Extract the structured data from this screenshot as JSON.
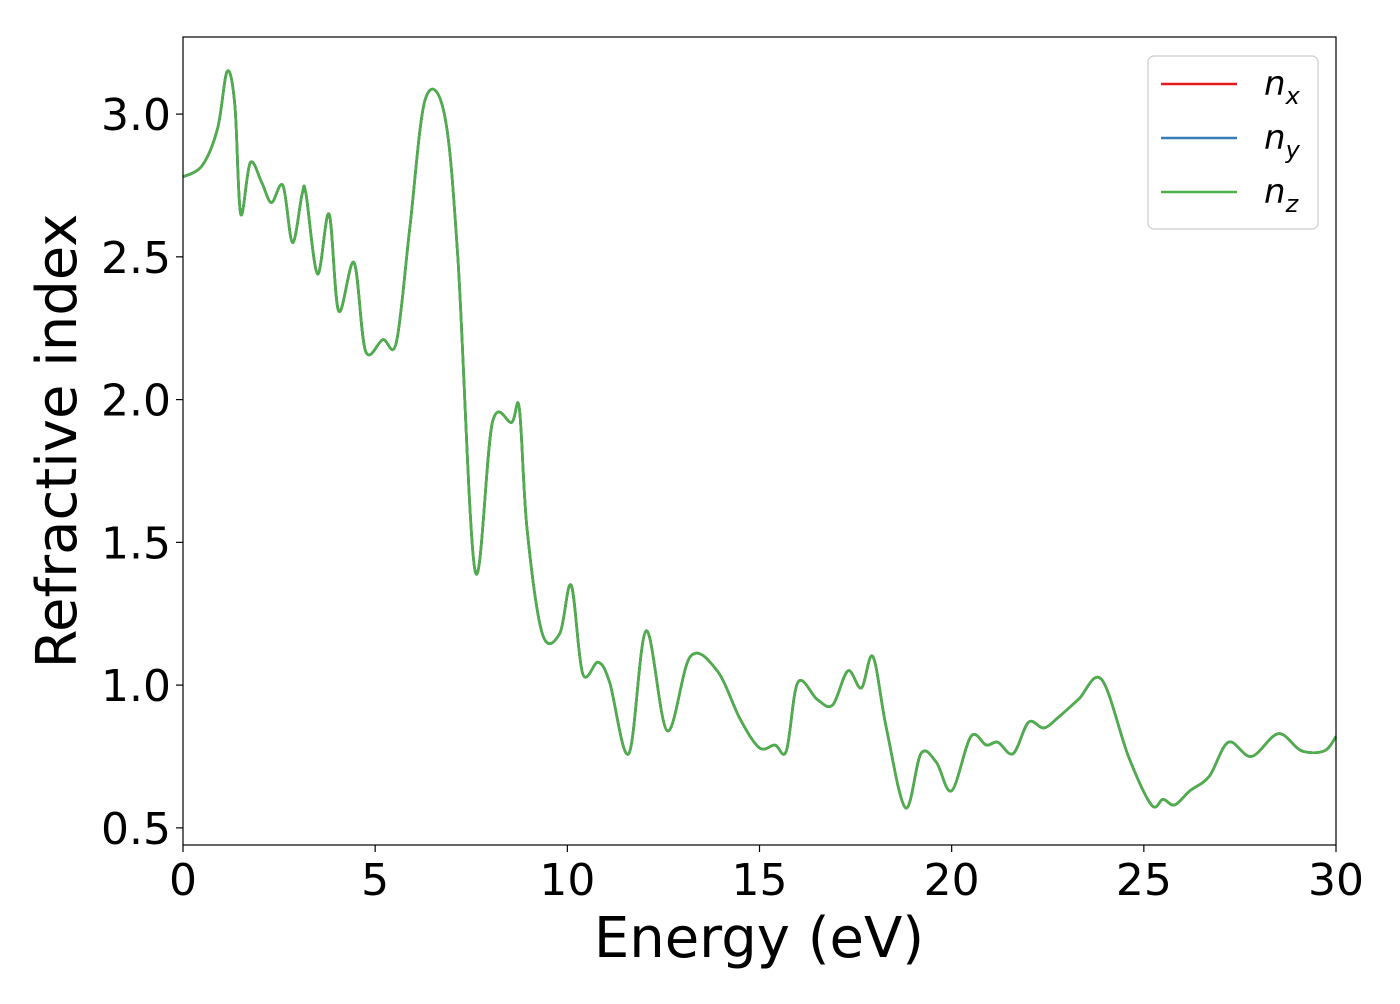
{
  "chart_data": {
    "type": "line",
    "title": "",
    "xlabel": "Energy (eV)",
    "ylabel": "Refractive index",
    "xlim": [
      0,
      30
    ],
    "ylim": [
      0.44,
      3.27
    ],
    "xticks": [
      0,
      5,
      10,
      15,
      20,
      25,
      30
    ],
    "xtick_labels": [
      "0",
      "5",
      "10",
      "15",
      "20",
      "25",
      "30"
    ],
    "yticks": [
      0.5,
      1.0,
      1.5,
      2.0,
      2.5,
      3.0
    ],
    "ytick_labels": [
      "0.5",
      "1.0",
      "1.5",
      "2.0",
      "2.5",
      "3.0"
    ],
    "grid": false,
    "legend_position": "top-right",
    "x": [
      0,
      0.5,
      0.9,
      1.15,
      1.35,
      1.5,
      1.75,
      2.05,
      2.3,
      2.6,
      2.85,
      3.1,
      3.2,
      3.5,
      3.8,
      4.05,
      4.45,
      4.75,
      5.2,
      5.55,
      5.9,
      6.3,
      6.8,
      7.15,
      7.6,
      8.05,
      8.55,
      8.75,
      8.95,
      9.35,
      9.8,
      10.1,
      10.4,
      10.8,
      11.1,
      11.6,
      12.05,
      12.6,
      13.2,
      13.9,
      14.5,
      15.0,
      15.4,
      15.7,
      16.0,
      16.5,
      16.9,
      17.3,
      17.65,
      17.95,
      18.3,
      18.8,
      19.2,
      19.6,
      20.0,
      20.5,
      20.9,
      21.2,
      21.6,
      22.0,
      22.4,
      22.8,
      23.3,
      23.9,
      24.6,
      25.2,
      25.5,
      25.8,
      26.2,
      26.7,
      27.2,
      27.8,
      28.5,
      29.1,
      29.7,
      30.0
    ],
    "series": [
      {
        "name_base": "n",
        "name_sub": "x",
        "color": "#e41a1c",
        "values": [
          2.78,
          2.82,
          2.95,
          3.15,
          3.03,
          2.65,
          2.83,
          2.76,
          2.69,
          2.75,
          2.55,
          2.72,
          2.72,
          2.44,
          2.65,
          2.31,
          2.48,
          2.17,
          2.21,
          2.2,
          2.6,
          3.05,
          3.0,
          2.5,
          1.4,
          1.92,
          1.92,
          1.97,
          1.55,
          1.18,
          1.18,
          1.35,
          1.04,
          1.08,
          1.01,
          0.76,
          1.19,
          0.84,
          1.1,
          1.05,
          0.88,
          0.78,
          0.79,
          0.77,
          1.01,
          0.95,
          0.93,
          1.05,
          0.99,
          1.1,
          0.85,
          0.57,
          0.76,
          0.73,
          0.63,
          0.82,
          0.79,
          0.8,
          0.76,
          0.87,
          0.85,
          0.89,
          0.95,
          1.02,
          0.75,
          0.58,
          0.6,
          0.58,
          0.63,
          0.68,
          0.8,
          0.75,
          0.83,
          0.77,
          0.77,
          0.82
        ]
      },
      {
        "name_base": "n",
        "name_sub": "y",
        "color": "#377eb8",
        "values": [
          2.78,
          2.82,
          2.95,
          3.15,
          3.03,
          2.65,
          2.83,
          2.76,
          2.69,
          2.75,
          2.55,
          2.72,
          2.72,
          2.44,
          2.65,
          2.31,
          2.48,
          2.17,
          2.21,
          2.2,
          2.6,
          3.05,
          3.0,
          2.5,
          1.4,
          1.92,
          1.92,
          1.97,
          1.55,
          1.18,
          1.18,
          1.35,
          1.04,
          1.08,
          1.01,
          0.76,
          1.19,
          0.84,
          1.1,
          1.05,
          0.88,
          0.78,
          0.79,
          0.77,
          1.01,
          0.95,
          0.93,
          1.05,
          0.99,
          1.1,
          0.85,
          0.57,
          0.76,
          0.73,
          0.63,
          0.82,
          0.79,
          0.8,
          0.76,
          0.87,
          0.85,
          0.89,
          0.95,
          1.02,
          0.75,
          0.58,
          0.6,
          0.58,
          0.63,
          0.68,
          0.8,
          0.75,
          0.83,
          0.77,
          0.77,
          0.82
        ]
      },
      {
        "name_base": "n",
        "name_sub": "z",
        "color": "#4daf4a",
        "values": [
          2.78,
          2.82,
          2.95,
          3.15,
          3.03,
          2.65,
          2.83,
          2.76,
          2.69,
          2.75,
          2.55,
          2.72,
          2.72,
          2.44,
          2.65,
          2.31,
          2.48,
          2.17,
          2.21,
          2.2,
          2.6,
          3.05,
          3.0,
          2.5,
          1.4,
          1.92,
          1.92,
          1.97,
          1.55,
          1.18,
          1.18,
          1.35,
          1.04,
          1.08,
          1.01,
          0.76,
          1.19,
          0.84,
          1.1,
          1.05,
          0.88,
          0.78,
          0.79,
          0.77,
          1.01,
          0.95,
          0.93,
          1.05,
          0.99,
          1.1,
          0.85,
          0.57,
          0.76,
          0.73,
          0.63,
          0.82,
          0.79,
          0.8,
          0.76,
          0.87,
          0.85,
          0.89,
          0.95,
          1.02,
          0.75,
          0.58,
          0.6,
          0.58,
          0.63,
          0.68,
          0.8,
          0.75,
          0.83,
          0.77,
          0.77,
          0.82
        ]
      }
    ]
  }
}
